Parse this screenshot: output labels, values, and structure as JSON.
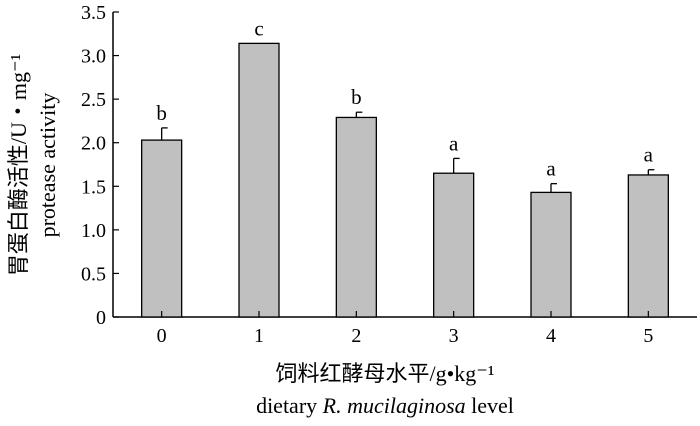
{
  "chart_data": {
    "type": "bar",
    "categories": [
      "0",
      "1",
      "2",
      "3",
      "4",
      "5"
    ],
    "values": [
      2.03,
      3.14,
      2.29,
      1.65,
      1.43,
      1.63
    ],
    "errors": [
      0.14,
      0.0,
      0.06,
      0.17,
      0.1,
      0.06
    ],
    "significance": [
      "b",
      "c",
      "b",
      "a",
      "a",
      "a"
    ],
    "ylim": [
      0,
      3.5
    ],
    "yticks": [
      0,
      0.5,
      1.0,
      1.5,
      2.0,
      2.5,
      3.0,
      3.5
    ],
    "ytick_labels": [
      "0",
      "0.5",
      "1.0",
      "1.5",
      "2.0",
      "2.5",
      "3.0",
      "3.5"
    ],
    "ylabel_line1": "胃蛋白酶活性/U・mg⁻¹",
    "ylabel_line2": "protease activity",
    "xlabel_cn": "饲料红酵母水平/g•kg⁻¹",
    "xlabel_en_prefix": "dietary ",
    "xlabel_en_italic": "R. mucilaginosa",
    "xlabel_en_suffix": " level",
    "bar_color": "#c0c0c0",
    "grid": false
  }
}
